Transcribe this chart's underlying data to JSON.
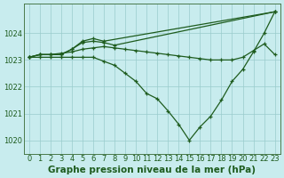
{
  "xlabel": "Graphe pression niveau de la mer (hPa)",
  "background_color": "#c8ecee",
  "grid_color": "#99cccc",
  "line_color": "#1e5c1e",
  "marker": "+",
  "ylim": [
    1019.5,
    1025.1
  ],
  "xlim": [
    -0.5,
    23.5
  ],
  "yticks": [
    1020,
    1021,
    1022,
    1023,
    1024
  ],
  "xtick_labels": [
    "0",
    "1",
    "2",
    "3",
    "4",
    "5",
    "6",
    "7",
    "8",
    "9",
    "10",
    "11",
    "12",
    "13",
    "14",
    "15",
    "16",
    "17",
    "18",
    "19",
    "20",
    "21",
    "22",
    "23"
  ],
  "series": [
    {
      "x": [
        0,
        1,
        2,
        3,
        4,
        5,
        6,
        7,
        23
      ],
      "y": [
        1023.1,
        1023.2,
        1023.2,
        1023.2,
        1023.4,
        1023.7,
        1023.8,
        1023.7,
        1024.8
      ]
    },
    {
      "x": [
        0,
        1,
        2,
        3,
        4,
        5,
        6,
        7,
        8,
        23
      ],
      "y": [
        1023.1,
        1023.2,
        1023.2,
        1023.2,
        1023.4,
        1023.65,
        1023.7,
        1023.65,
        1023.55,
        1024.8
      ]
    },
    {
      "x": [
        0,
        1,
        2,
        3,
        4,
        5,
        6,
        7,
        8,
        9,
        10,
        11,
        12,
        13,
        14,
        15,
        16,
        17,
        18,
        19,
        20,
        21,
        22,
        23
      ],
      "y": [
        1023.1,
        1023.2,
        1023.2,
        1023.25,
        1023.3,
        1023.4,
        1023.45,
        1023.5,
        1023.45,
        1023.4,
        1023.35,
        1023.3,
        1023.25,
        1023.2,
        1023.15,
        1023.1,
        1023.05,
        1023.0,
        1023.0,
        1023.0,
        1023.1,
        1023.35,
        1023.6,
        1023.2
      ]
    },
    {
      "x": [
        0,
        1,
        2,
        3,
        4,
        5,
        6,
        7,
        8,
        9,
        10,
        11,
        12,
        13,
        14,
        15,
        16,
        17,
        18,
        19,
        20,
        21,
        22,
        23
      ],
      "y": [
        1023.1,
        1023.1,
        1023.1,
        1023.1,
        1023.1,
        1023.1,
        1023.1,
        1022.95,
        1022.8,
        1022.5,
        1022.2,
        1021.75,
        1021.55,
        1021.1,
        1020.6,
        1020.0,
        1020.5,
        1020.9,
        1021.5,
        1022.2,
        1022.65,
        1023.3,
        1024.0,
        1024.8
      ]
    }
  ],
  "font_color": "#1e5c1e",
  "tick_fontsize": 6.0,
  "xlabel_fontsize": 7.5,
  "markersize": 3.5,
  "linewidth": 0.9
}
